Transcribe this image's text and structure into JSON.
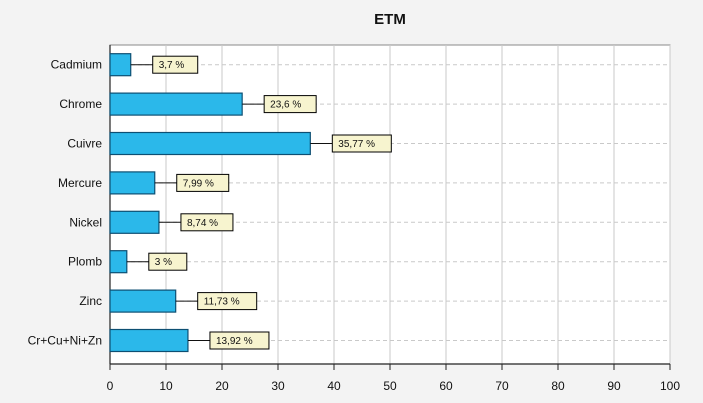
{
  "chart_data": {
    "type": "bar",
    "orientation": "horizontal",
    "title": "ETM",
    "xlabel": "",
    "ylabel": "",
    "categories": [
      "Cadmium",
      "Chrome",
      "Cuivre",
      "Mercure",
      "Nickel",
      "Plomb",
      "Zinc",
      "Cr+Cu+Ni+Zn"
    ],
    "values": [
      3.7,
      23.6,
      35.77,
      7.99,
      8.74,
      3,
      11.73,
      13.92
    ],
    "data_labels": [
      "3,7 %",
      "23,6 %",
      "35,77 %",
      "7,99 %",
      "8,74 %",
      "3 %",
      "11,73 %",
      "13,92 %"
    ],
    "xlim": [
      0,
      100
    ],
    "xticks": [
      0,
      10,
      20,
      30,
      40,
      50,
      60,
      70,
      80,
      90,
      100
    ],
    "xtick_labels": [
      "0",
      "10",
      "20",
      "30",
      "40",
      "50",
      "60",
      "70",
      "80",
      "90",
      "100"
    ],
    "grid": true,
    "legend": "none",
    "colors": {
      "bar_fill": "#2bb8ea",
      "bar_stroke": "#0d4f73",
      "plot_background": "#ffffff",
      "page_background": "#f3f3f3",
      "grid": "#c9c9c9",
      "label_fill": "#f7f4cf",
      "label_stroke": "#000000"
    }
  }
}
